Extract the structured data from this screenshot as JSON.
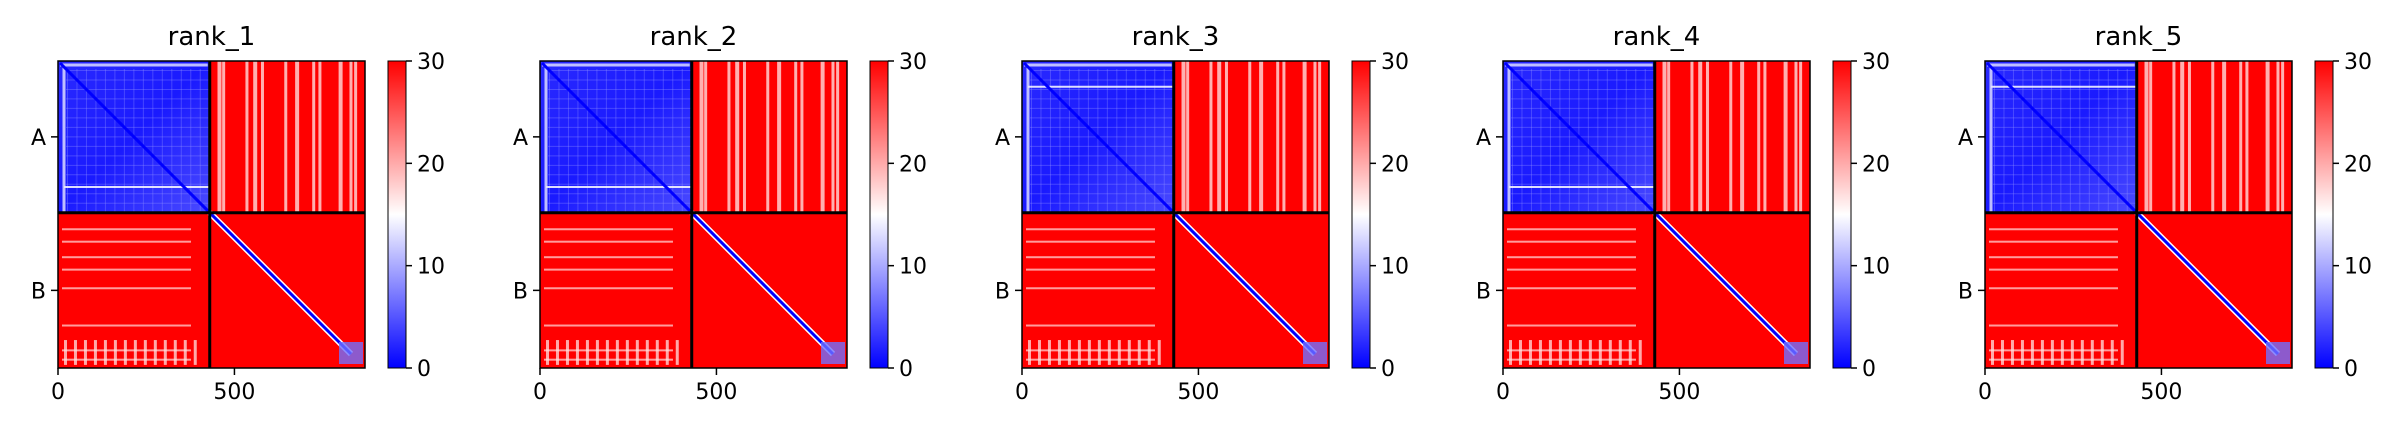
{
  "chart_data": [
    {
      "type": "heatmap",
      "title": "rank_1",
      "xlabel": "",
      "ylabel": "",
      "x_ticks": [
        "0",
        "500"
      ],
      "x_tick_values": [
        0,
        500
      ],
      "y_tick_labels": [
        "A",
        "B"
      ],
      "chain_boundary": 430,
      "total_length": 870,
      "colorbar": {
        "ticks": [
          "0",
          "10",
          "20",
          "30"
        ],
        "range": [
          0,
          30
        ],
        "colormap": [
          "#0000ff",
          "#ffffff",
          "#ff0000"
        ]
      },
      "values_summary": {
        "A-A": 3,
        "A-B": 30,
        "B-A": 30,
        "B-B": 30,
        "diagonal": 0
      }
    },
    {
      "type": "heatmap",
      "title": "rank_2",
      "xlabel": "",
      "ylabel": "",
      "x_ticks": [
        "0",
        "500"
      ],
      "x_tick_values": [
        0,
        500
      ],
      "y_tick_labels": [
        "A",
        "B"
      ],
      "chain_boundary": 430,
      "total_length": 870,
      "colorbar": {
        "ticks": [
          "0",
          "10",
          "20",
          "30"
        ],
        "range": [
          0,
          30
        ],
        "colormap": [
          "#0000ff",
          "#ffffff",
          "#ff0000"
        ]
      },
      "values_summary": {
        "A-A": 3,
        "A-B": 30,
        "B-A": 30,
        "B-B": 30,
        "diagonal": 0
      }
    },
    {
      "type": "heatmap",
      "title": "rank_3",
      "xlabel": "",
      "ylabel": "",
      "x_ticks": [
        "0",
        "500"
      ],
      "x_tick_values": [
        0,
        500
      ],
      "y_tick_labels": [
        "A",
        "B"
      ],
      "chain_boundary": 430,
      "total_length": 870,
      "colorbar": {
        "ticks": [
          "0",
          "10",
          "20",
          "30"
        ],
        "range": [
          0,
          30
        ],
        "colormap": [
          "#0000ff",
          "#ffffff",
          "#ff0000"
        ]
      },
      "values_summary": {
        "A-A": 4,
        "A-B": 30,
        "B-A": 30,
        "B-B": 30,
        "diagonal": 0
      }
    },
    {
      "type": "heatmap",
      "title": "rank_4",
      "xlabel": "",
      "ylabel": "",
      "x_ticks": [
        "0",
        "500"
      ],
      "x_tick_values": [
        0,
        500
      ],
      "y_tick_labels": [
        "A",
        "B"
      ],
      "chain_boundary": 430,
      "total_length": 870,
      "colorbar": {
        "ticks": [
          "0",
          "10",
          "20",
          "30"
        ],
        "range": [
          0,
          30
        ],
        "colormap": [
          "#0000ff",
          "#ffffff",
          "#ff0000"
        ]
      },
      "values_summary": {
        "A-A": 3,
        "A-B": 30,
        "B-A": 30,
        "B-B": 30,
        "diagonal": 0
      }
    },
    {
      "type": "heatmap",
      "title": "rank_5",
      "xlabel": "",
      "ylabel": "",
      "x_ticks": [
        "0",
        "500"
      ],
      "x_tick_values": [
        0,
        500
      ],
      "y_tick_labels": [
        "A",
        "B"
      ],
      "chain_boundary": 430,
      "total_length": 870,
      "colorbar": {
        "ticks": [
          "0",
          "10",
          "20",
          "30"
        ],
        "range": [
          0,
          30
        ],
        "colormap": [
          "#0000ff",
          "#ffffff",
          "#ff0000"
        ]
      },
      "values_summary": {
        "A-A": 4,
        "A-B": 30,
        "B-A": 30,
        "B-B": 30,
        "diagonal": 0
      }
    }
  ]
}
